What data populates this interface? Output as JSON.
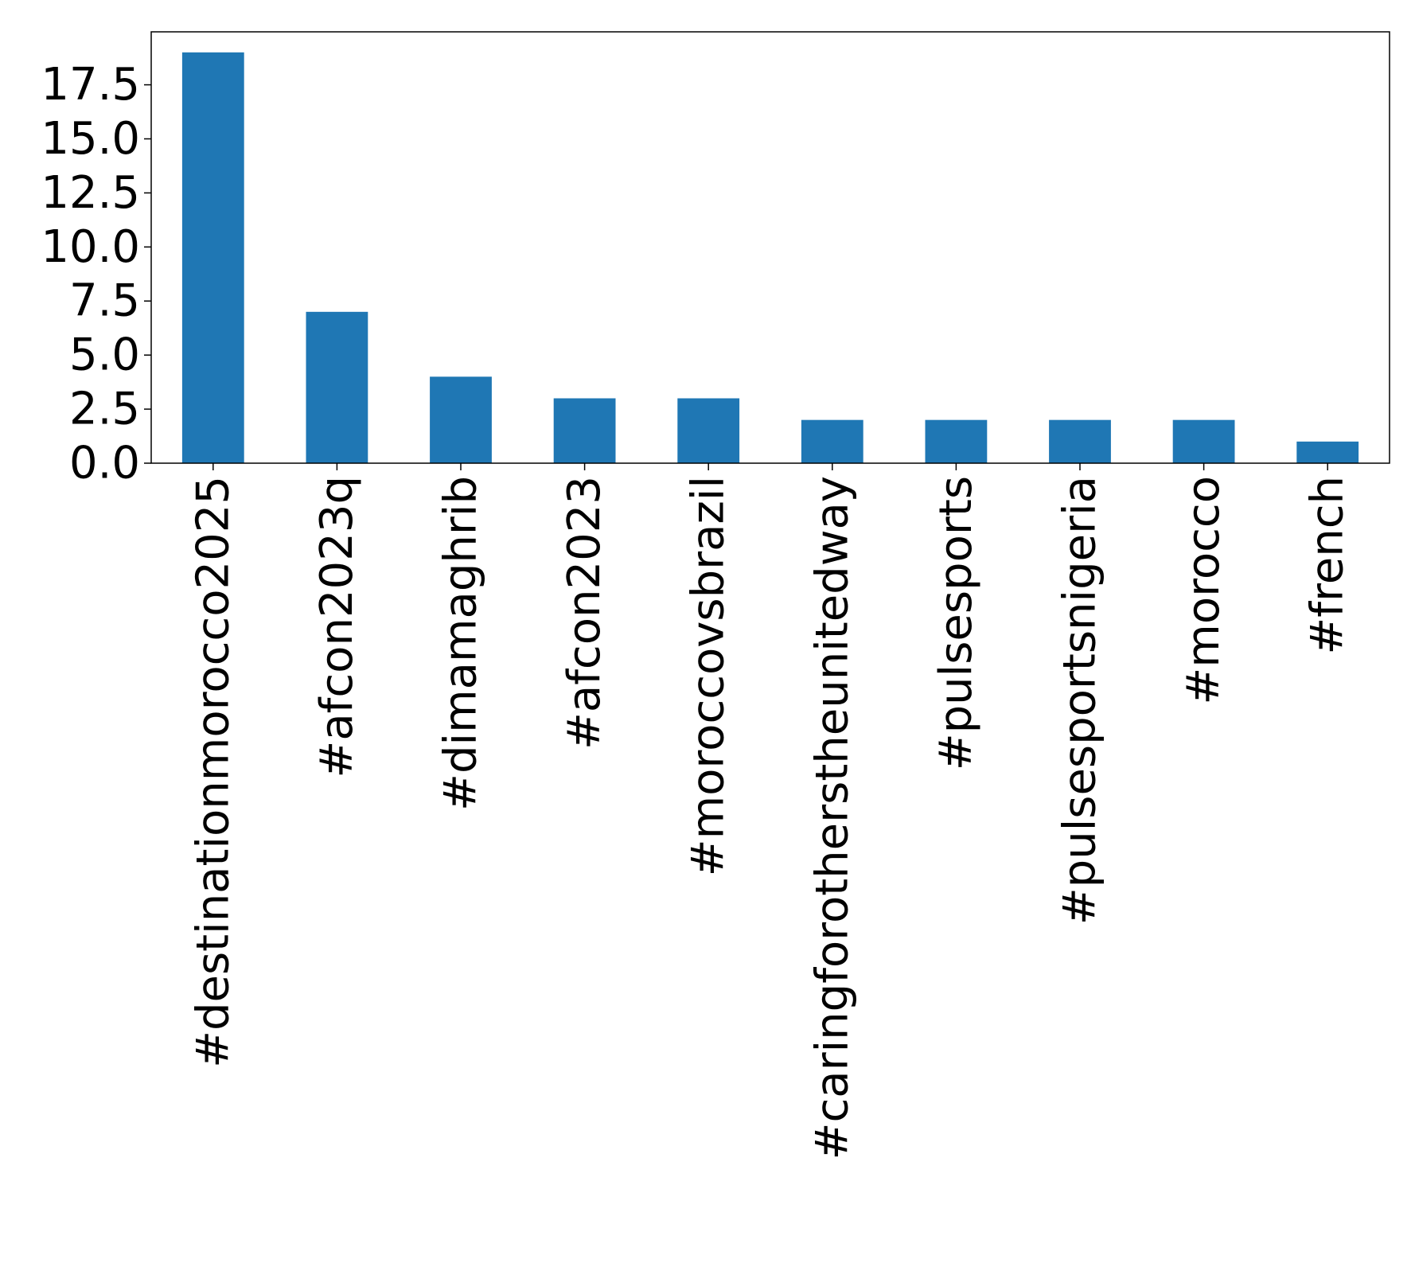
{
  "chart_data": {
    "type": "bar",
    "title": "",
    "xlabel": "",
    "ylabel": "",
    "categories": [
      "#destinationmorocco2025",
      "#afcon2023q",
      "#dimamaghrib",
      "#afcon2023",
      "#moroccovsbrazil",
      "#caringforotherstheunitedway",
      "#pulsesports",
      "#pulsesportsnigeria",
      "#morocco",
      "#french"
    ],
    "values": [
      19,
      7,
      4,
      3,
      3,
      2,
      2,
      2,
      2,
      1
    ],
    "ylim": [
      0,
      19.95
    ],
    "yticks": [
      0,
      2.5,
      5,
      7.5,
      10,
      12.5,
      15,
      17.5
    ],
    "ytick_labels": [
      "0.0",
      "2.5",
      "5.0",
      "7.5",
      "10.0",
      "12.5",
      "15.0",
      "17.5"
    ],
    "bar_color": "#1f77b4",
    "grid": false,
    "legend": "none"
  }
}
